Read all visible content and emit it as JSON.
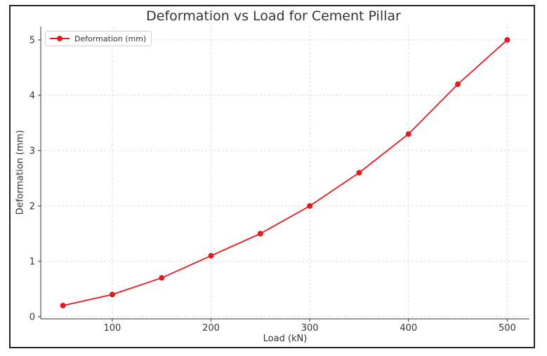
{
  "chart_data": {
    "type": "line",
    "title": "Deformation vs Load for Cement Pillar",
    "xlabel": "Load (kN)",
    "ylabel": "Deformation (mm)",
    "x": [
      50,
      100,
      150,
      200,
      250,
      300,
      350,
      400,
      450,
      500
    ],
    "series": [
      {
        "name": "Deformation (mm)",
        "values": [
          0.2,
          0.4,
          0.7,
          1.1,
          1.5,
          2.0,
          2.6,
          3.3,
          4.2,
          5.0
        ],
        "color": "#e41a1c",
        "marker": "circle"
      }
    ],
    "xticks": [
      100,
      200,
      300,
      400,
      500
    ],
    "yticks": [
      0,
      1,
      2,
      3,
      4,
      5
    ],
    "xlim": [
      27.5,
      522.5
    ],
    "ylim": [
      -0.04,
      5.24
    ],
    "grid": true,
    "legend_position": "top-left"
  }
}
